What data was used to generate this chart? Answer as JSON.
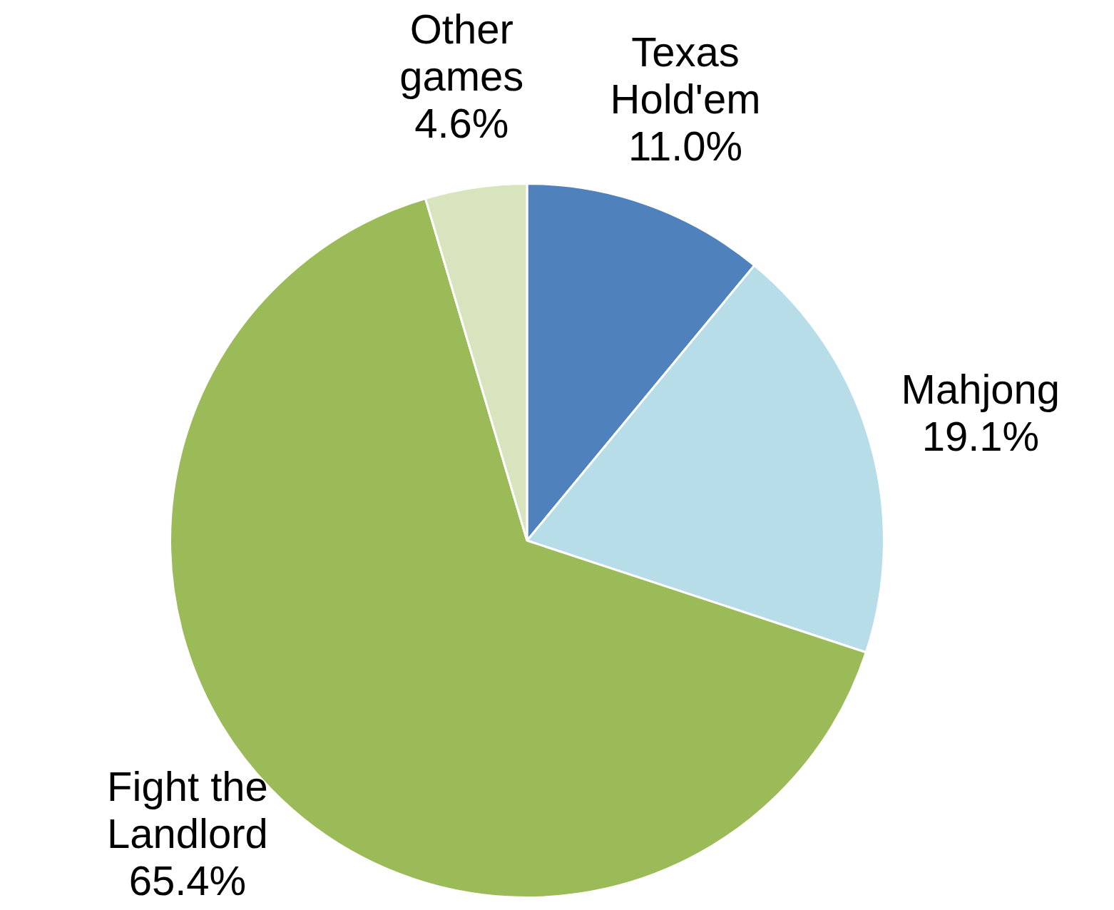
{
  "chart_data": {
    "type": "pie",
    "categories": [
      "Texas Hold'em",
      "Mahjong",
      "Fight the Landlord",
      "Other games"
    ],
    "values": [
      11.0,
      19.1,
      65.4,
      4.6
    ],
    "value_labels": [
      "11.0%",
      "19.1%",
      "65.4%",
      "4.6%"
    ],
    "colors": [
      "#4f81bd",
      "#b7dde8",
      "#9bbb59",
      "#d7e4bd"
    ],
    "legend": false
  }
}
